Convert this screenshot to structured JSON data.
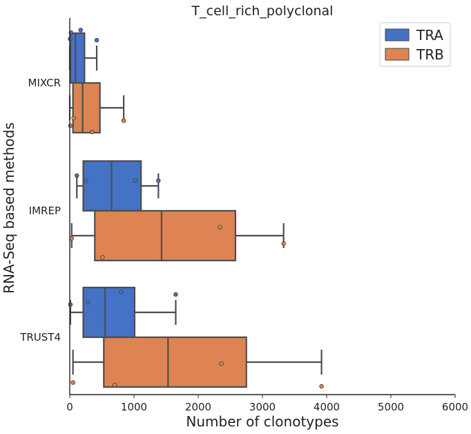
{
  "chart_data": {
    "type": "boxplot",
    "orientation": "horizontal",
    "title": "T_cell_rich_polyclonal",
    "xlabel": "Number of clonotypes",
    "ylabel": "RNA-Seq based methods",
    "xlim": [
      0,
      6000
    ],
    "xticks": [
      0,
      1000,
      2000,
      3000,
      4000,
      5000,
      6000
    ],
    "categories": [
      "MIXCR",
      "IMREP",
      "TRUST4"
    ],
    "legend": {
      "position": "top-right",
      "entries": [
        "TRA",
        "TRB"
      ]
    },
    "grid": false,
    "series": [
      {
        "name": "TRA",
        "color": "#4472c4",
        "point_color": "#4a6fc0",
        "boxes": [
          {
            "category": "MIXCR",
            "whisker_low": 0,
            "q1": 10,
            "median": 90,
            "q3": 230,
            "whisker_high": 420,
            "points": [
              {
                "x": 420,
                "j": -0.34
              },
              {
                "x": 170,
                "j": -0.42
              },
              {
                "x": 20,
                "j": -0.4
              },
              {
                "x": 5,
                "j": -0.35
              }
            ]
          },
          {
            "category": "IMREP",
            "whisker_low": 110,
            "q1": 210,
            "median": 650,
            "q3": 1110,
            "whisker_high": 1380,
            "points": [
              {
                "x": 1380,
                "j": -0.24
              },
              {
                "x": 1020,
                "j": -0.24
              },
              {
                "x": 250,
                "j": -0.24
              },
              {
                "x": 110,
                "j": -0.28
              }
            ]
          },
          {
            "category": "TRUST4",
            "whisker_low": 10,
            "q1": 210,
            "median": 550,
            "q3": 1010,
            "whisker_high": 1650,
            "points": [
              {
                "x": 1650,
                "j": -0.34
              },
              {
                "x": 800,
                "j": -0.36
              },
              {
                "x": 280,
                "j": -0.28
              },
              {
                "x": 10,
                "j": -0.26
              }
            ]
          }
        ]
      },
      {
        "name": "TRB",
        "color": "#dd8452",
        "point_color": "#dd8452",
        "boxes": [
          {
            "category": "MIXCR",
            "whisker_low": 0,
            "q1": 50,
            "median": 200,
            "q3": 470,
            "whisker_high": 840,
            "points": [
              {
                "x": 840,
                "j": 0.3
              },
              {
                "x": 350,
                "j": 0.39
              },
              {
                "x": 60,
                "j": 0.28
              },
              {
                "x": 10,
                "j": 0.34
              }
            ]
          },
          {
            "category": "IMREP",
            "whisker_low": 30,
            "q1": 390,
            "median": 1430,
            "q3": 2580,
            "whisker_high": 3330,
            "points": [
              {
                "x": 3330,
                "j": 0.26
              },
              {
                "x": 2340,
                "j": 0.13
              },
              {
                "x": 510,
                "j": 0.37
              },
              {
                "x": 30,
                "j": 0.22
              }
            ]
          },
          {
            "category": "TRUST4",
            "whisker_low": 50,
            "q1": 530,
            "median": 1530,
            "q3": 2750,
            "whisker_high": 3920,
            "points": [
              {
                "x": 3920,
                "j": 0.39
              },
              {
                "x": 2360,
                "j": 0.21
              },
              {
                "x": 700,
                "j": 0.38
              },
              {
                "x": 50,
                "j": 0.36
              }
            ]
          }
        ]
      }
    ]
  }
}
